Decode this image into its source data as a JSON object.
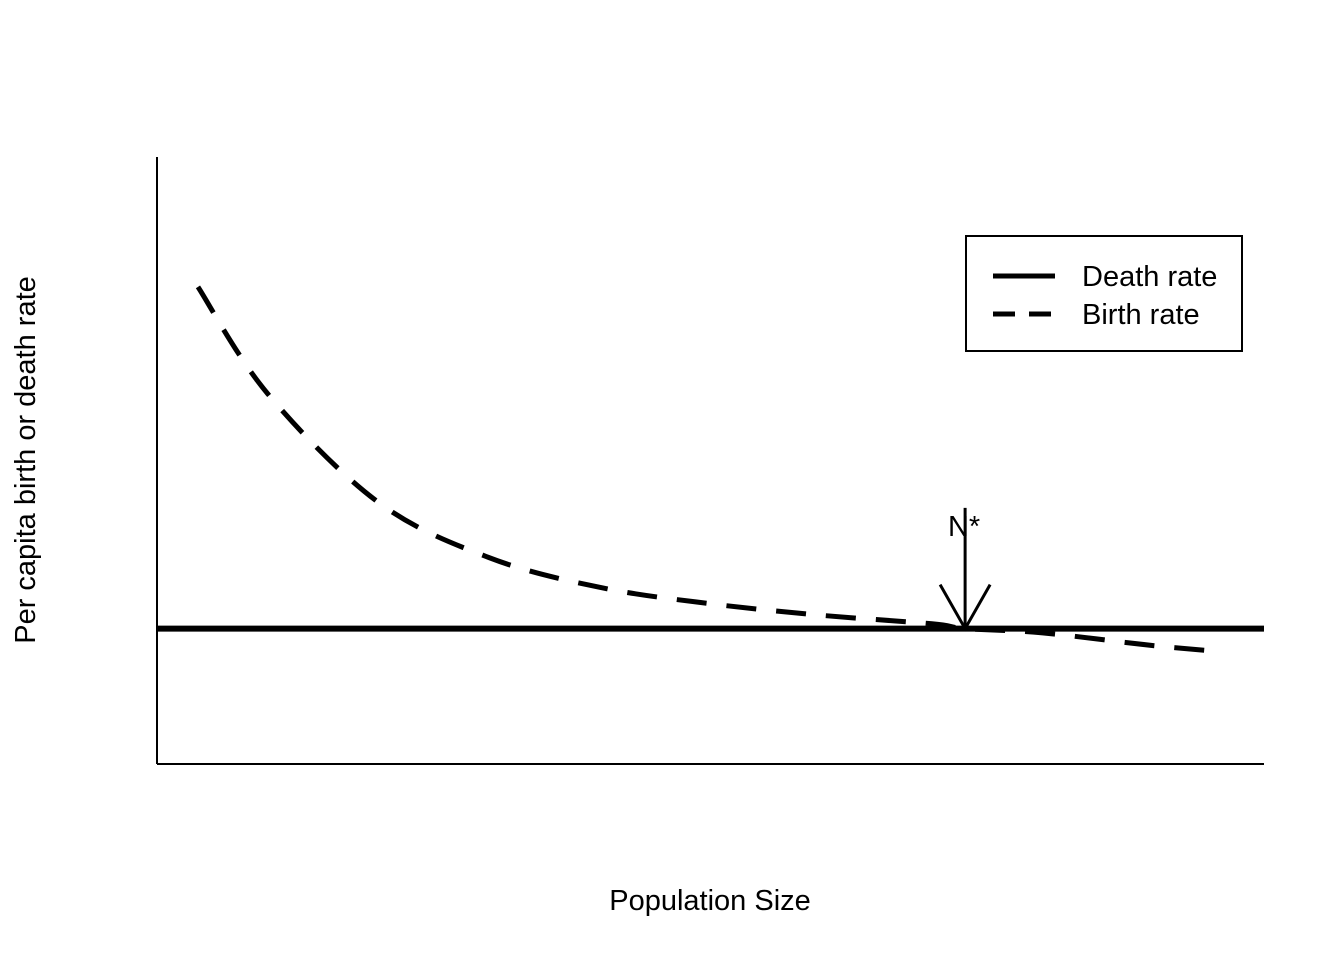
{
  "chart_data": {
    "type": "line",
    "title": "",
    "xlabel": "Population Size",
    "ylabel": "Per capita birth or death rate",
    "xlim": [
      0,
      100
    ],
    "ylim": [
      0,
      100
    ],
    "grid": false,
    "axis_ticks": false,
    "legend_position": "top-right",
    "series": [
      {
        "name": "Death rate",
        "style": "solid",
        "color": "#000000",
        "x": [
          0,
          100
        ],
        "y": [
          22.3,
          22.3
        ]
      },
      {
        "name": "Birth rate",
        "style": "dashed",
        "color": "#000000",
        "x": [
          3.7,
          10,
          20,
          30,
          40,
          50,
          60,
          70,
          73,
          80,
          90,
          96.3
        ],
        "y": [
          78.6,
          61.0,
          43.1,
          34.0,
          29.1,
          26.4,
          24.5,
          23.1,
          22.3,
          21.6,
          19.5,
          18.5
        ]
      }
    ],
    "annotations": [
      {
        "text": "N*",
        "type": "arrow",
        "x": 73,
        "y_from": 42.2,
        "y_to": 22.3
      }
    ]
  }
}
